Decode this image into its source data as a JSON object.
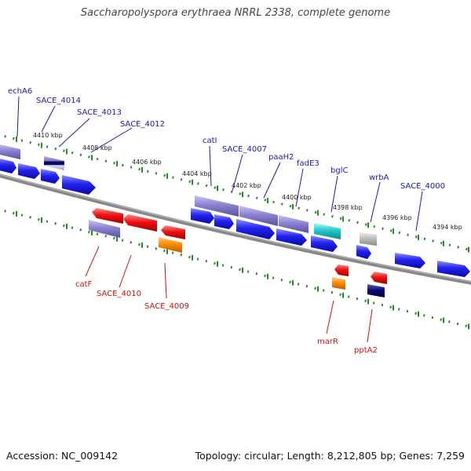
{
  "title": "Saccharopolyspora erythraea NRRL 2338, complete genome",
  "footer": {
    "accession": "Accession: NC_009142",
    "summary": "Topology: circular; Length: 8,212,805 bp; Genes: 7,259"
  },
  "colors": {
    "label_blue": "#1a1aa8",
    "label_red": "#cc1111",
    "tick_green": "#2a8a2a",
    "backbone": "#888888",
    "cds": "#1a1aee",
    "cds_dark": "#0a0a77",
    "cds_red": "#ee1111",
    "cds_orange": "#ff8c00",
    "cds_cyan": "#22c8c8",
    "cds_gray": "#bdbdbd",
    "feature_lavender": "#8a82d0"
  },
  "scale_labels": [
    "4410 kbp",
    "4408 kbp",
    "4406 kbp",
    "4404 kbp",
    "4402 kbp",
    "4400 kbp",
    "4398 kbp",
    "4396 kbp",
    "4394 kbp"
  ],
  "genes_top": [
    "echA6",
    "SACE_4014",
    "SACE_4013",
    "SACE_4012",
    "catI",
    "SACE_4007",
    "paaH2",
    "fadE3",
    "bglC",
    "wrbA",
    "SACE_4000"
  ],
  "genes_bottom": [
    "catF",
    "SACE_4010",
    "SACE_4009",
    "marR",
    "pptA2"
  ]
}
